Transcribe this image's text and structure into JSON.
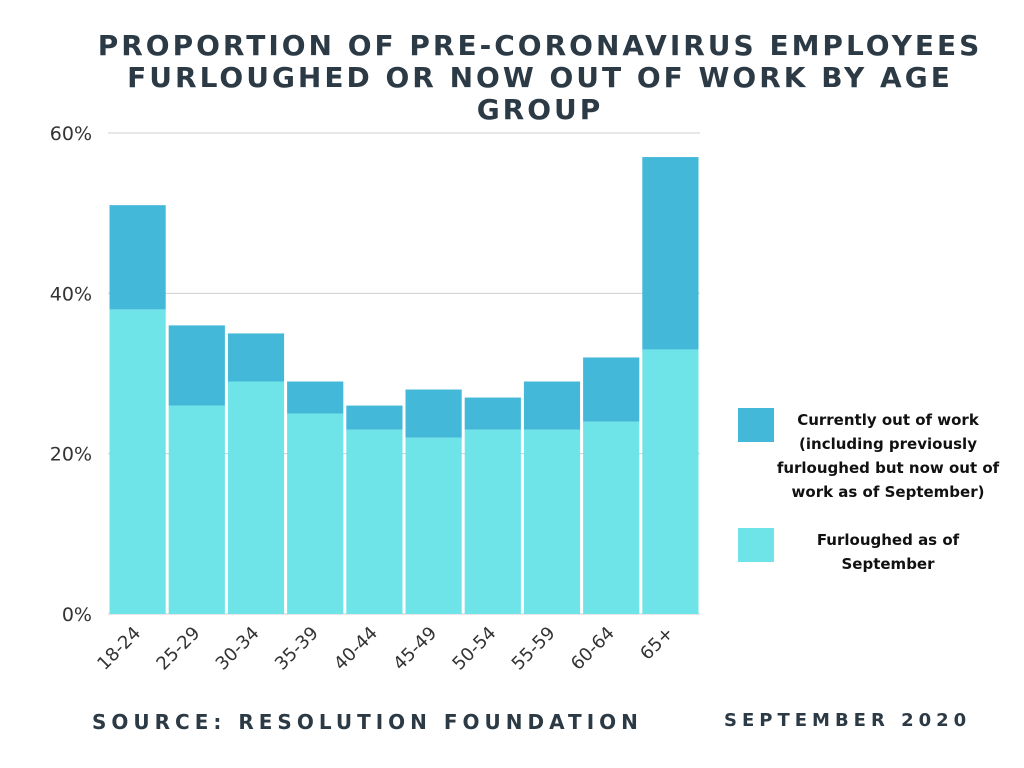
{
  "colors": {
    "out_of_work": "#44b8d8",
    "furloughed": "#6ee3e8",
    "grid": "#cfcfcf",
    "axis_text": "#333333",
    "title": "#2c3a45"
  },
  "chart_data": {
    "type": "bar",
    "stacked": true,
    "title": "PROPORTION OF PRE-CORONAVIRUS EMPLOYEES FURLOUGHED OR NOW OUT OF WORK BY AGE GROUP",
    "xlabel": "",
    "ylabel": "",
    "ylim": [
      0,
      60
    ],
    "yticks": [
      0,
      20,
      40,
      60
    ],
    "ytick_labels": [
      "0%",
      "20%",
      "40%",
      "60%"
    ],
    "grid": true,
    "legend_position": "right",
    "categories": [
      "18-24",
      "25-29",
      "30-34",
      "35-39",
      "40-44",
      "45-49",
      "50-54",
      "55-59",
      "60-64",
      "65+"
    ],
    "series": [
      {
        "name": "Furloughed as of September",
        "values": [
          38,
          26,
          29,
          25,
          23,
          22,
          23,
          23,
          24,
          33
        ]
      },
      {
        "name": "Currently out of work (including previously furloughed but now out of work as of September)",
        "values": [
          13,
          10,
          6,
          4,
          3,
          6,
          4,
          6,
          8,
          24
        ]
      }
    ]
  },
  "legend": {
    "out_of_work_label": "Currently out of work (including previously furloughed but now out of work as of September)",
    "furloughed_label": "Furloughed as of September"
  },
  "footer": {
    "source": "SOURCE: RESOLUTION FOUNDATION",
    "date": "SEPTEMBER 2020"
  }
}
